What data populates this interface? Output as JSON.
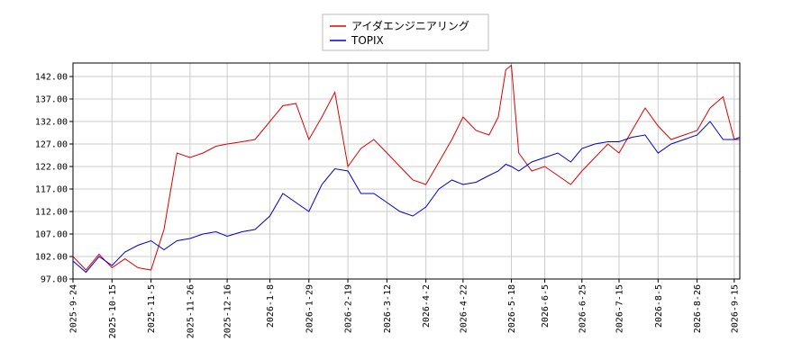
{
  "chart_data": {
    "type": "line",
    "title": "",
    "xlabel": "",
    "ylabel": "",
    "ylim": [
      97.0,
      145.0
    ],
    "grid": true,
    "legend_placement": "top-center",
    "y_ticks": [
      "97.00",
      "102.00",
      "107.00",
      "112.00",
      "117.00",
      "122.00",
      "127.00",
      "132.00",
      "137.00",
      "142.00"
    ],
    "x_ticks": [
      "2025-9-24",
      "2025-10-15",
      "2025-11-5",
      "2025-11-26",
      "2025-12-16",
      "2026-1-8",
      "2026-1-29",
      "2026-2-19",
      "2026-3-12",
      "2026-4-2",
      "2026-4-22",
      "2026-5-18",
      "2026-6-5",
      "2026-6-25",
      "2026-7-15",
      "2026-8-5",
      "2026-8-26",
      "2026-9-15"
    ],
    "x": [
      "2025-9-24",
      "2025-10-1",
      "2025-10-8",
      "2025-10-15",
      "2025-10-22",
      "2025-10-29",
      "2025-11-5",
      "2025-11-12",
      "2025-11-19",
      "2025-11-26",
      "2025-12-3",
      "2025-12-10",
      "2025-12-16",
      "2025-12-24",
      "2025-12-31",
      "2026-1-8",
      "2026-1-15",
      "2026-1-22",
      "2026-1-29",
      "2026-2-5",
      "2026-2-12",
      "2026-2-19",
      "2026-2-26",
      "2026-3-5",
      "2026-3-12",
      "2026-3-19",
      "2026-3-26",
      "2026-4-2",
      "2026-4-9",
      "2026-4-16",
      "2026-4-22",
      "2026-4-29",
      "2026-5-6",
      "2026-5-11",
      "2026-5-15",
      "2026-5-18",
      "2026-5-22",
      "2026-5-29",
      "2026-6-5",
      "2026-6-12",
      "2026-6-19",
      "2026-6-25",
      "2026-7-2",
      "2026-7-9",
      "2026-7-15",
      "2026-7-22",
      "2026-7-29",
      "2026-8-5",
      "2026-8-12",
      "2026-8-19",
      "2026-8-26",
      "2026-9-2",
      "2026-9-9",
      "2026-9-15",
      "2026-9-18"
    ],
    "series": [
      {
        "name": "アイダエンジニアリング",
        "color": "#dd0000",
        "values": [
          102.0,
          99.0,
          102.5,
          99.5,
          101.5,
          99.5,
          99.0,
          108.0,
          125.0,
          124.0,
          125.0,
          126.5,
          127.0,
          127.5,
          128.0,
          132.0,
          135.5,
          136.0,
          128.0,
          133.0,
          138.5,
          122.0,
          126.0,
          128.0,
          125.0,
          122.0,
          119.0,
          118.0,
          123.0,
          128.0,
          133.0,
          130.0,
          129.0,
          133.0,
          143.5,
          144.5,
          125.0,
          121.0,
          122.0,
          120.0,
          118.0,
          121.0,
          124.0,
          127.0,
          125.0,
          130.0,
          135.0,
          131.0,
          128.0,
          129.0,
          130.0,
          135.0,
          137.5,
          128.0,
          128.0
        ]
      },
      {
        "name": "TOPIX",
        "color": "#0000cc",
        "values": [
          101.0,
          98.5,
          102.0,
          100.0,
          103.0,
          104.5,
          105.5,
          103.5,
          105.5,
          106.0,
          107.0,
          107.5,
          106.5,
          107.5,
          108.0,
          111.0,
          116.0,
          114.0,
          112.0,
          118.0,
          121.5,
          121.0,
          116.0,
          116.0,
          114.0,
          112.0,
          111.0,
          113.0,
          117.0,
          119.0,
          118.0,
          118.5,
          120.0,
          121.0,
          122.5,
          122.0,
          121.0,
          123.0,
          124.0,
          125.0,
          123.0,
          126.0,
          127.0,
          127.5,
          127.5,
          128.5,
          129.0,
          125.0,
          127.0,
          128.0,
          129.0,
          132.0,
          128.0,
          128.0,
          128.5
        ]
      }
    ]
  }
}
